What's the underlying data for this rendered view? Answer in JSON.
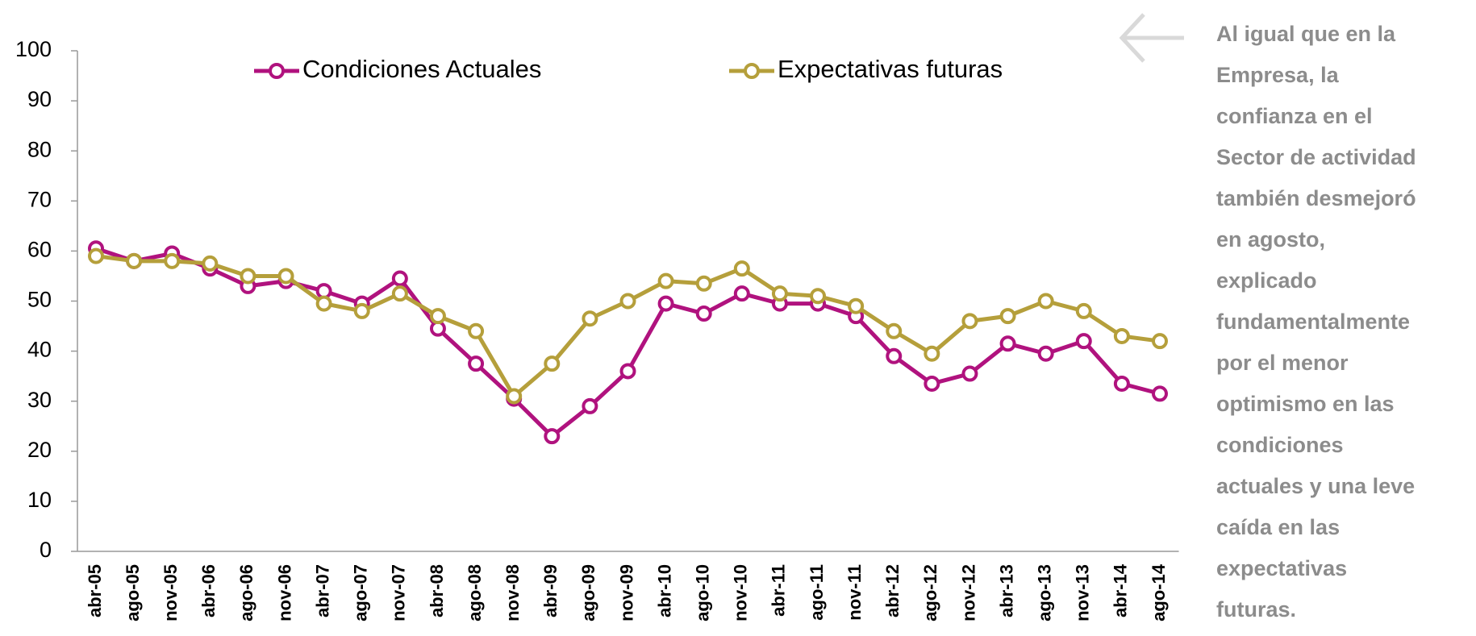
{
  "chart_data": {
    "type": "line",
    "categories": [
      "abr-05",
      "ago-05",
      "nov-05",
      "abr-06",
      "ago-06",
      "nov-06",
      "abr-07",
      "ago-07",
      "nov-07",
      "abr-08",
      "ago-08",
      "nov-08",
      "abr-09",
      "ago-09",
      "nov-09",
      "abr-10",
      "ago-10",
      "nov-10",
      "abr-11",
      "ago-11",
      "nov-11",
      "abr-12",
      "ago-12",
      "nov-12",
      "abr-13",
      "ago-13",
      "nov-13",
      "abr-14",
      "ago-14"
    ],
    "series": [
      {
        "name": "Condiciones Actuales",
        "color": "#b0127e",
        "values": [
          60.5,
          58,
          59.5,
          56.5,
          53,
          54,
          52,
          49.5,
          54.5,
          44.5,
          37.5,
          30.5,
          23,
          29,
          36,
          49.5,
          47.5,
          51.5,
          49.5,
          49.5,
          47,
          39,
          33.5,
          35.5,
          41.5,
          39.5,
          42,
          33.5,
          31.5
        ]
      },
      {
        "name": "Expectativas futuras",
        "color": "#b59f3b",
        "values": [
          59,
          58,
          58,
          57.5,
          55,
          55,
          49.5,
          48,
          51.5,
          47,
          44,
          31,
          37.5,
          46.5,
          50,
          54,
          53.5,
          56.5,
          51.5,
          51,
          49,
          44,
          39.5,
          46,
          47,
          50,
          48,
          43,
          42
        ]
      }
    ],
    "ylim": [
      0,
      100
    ],
    "yticks": [
      0,
      10,
      20,
      30,
      40,
      50,
      60,
      70,
      80,
      90,
      100
    ],
    "grid": false,
    "legend": "top"
  },
  "note": {
    "lines": [
      "Al igual que en la",
      "Empresa, la",
      "confianza en el",
      "Sector de actividad",
      "también desmejoró",
      "en agosto,",
      "explicado",
      "fundamentalmente",
      "por el menor",
      "optimismo en las",
      "condiciones",
      "actuales y una leve",
      "caída en las",
      "expectativas",
      "futuras."
    ]
  }
}
